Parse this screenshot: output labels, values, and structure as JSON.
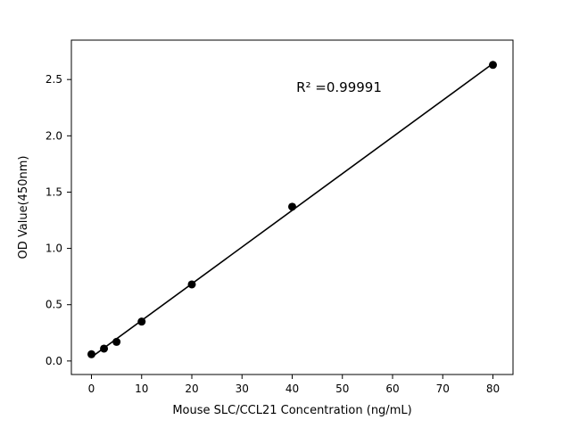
{
  "figure": {
    "background_color": "#ffffff",
    "foreground_color": "#000000"
  },
  "chart_data": {
    "type": "scatter",
    "title": "",
    "xlabel": "Mouse SLC/CCL21 Concentration (ng/mL)",
    "ylabel": "OD Value(450nm)",
    "x": [
      0,
      2.5,
      5,
      10,
      20,
      40,
      80
    ],
    "y": [
      0.06,
      0.11,
      0.17,
      0.35,
      0.68,
      1.37,
      2.63
    ],
    "fit_line": {
      "x": [
        0,
        80
      ],
      "y": [
        0.034,
        2.642
      ]
    },
    "annotation": "R² =0.99991",
    "xlim": [
      -4,
      84
    ],
    "ylim": [
      -0.12,
      2.85
    ],
    "x_ticks": [
      0,
      10,
      20,
      30,
      40,
      50,
      60,
      70,
      80
    ],
    "x_tick_labels": [
      "0",
      "10",
      "20",
      "30",
      "40",
      "50",
      "60",
      "70",
      "80"
    ],
    "y_ticks": [
      0.0,
      0.5,
      1.0,
      1.5,
      2.0,
      2.5
    ],
    "y_tick_labels": [
      "0.0",
      "0.5",
      "1.0",
      "1.5",
      "2.0",
      "2.5"
    ],
    "grid": false,
    "legend": "none",
    "marker_color": "#000000",
    "marker_radius": 4.5,
    "line_color": "#000000",
    "line_width": 1.6
  }
}
